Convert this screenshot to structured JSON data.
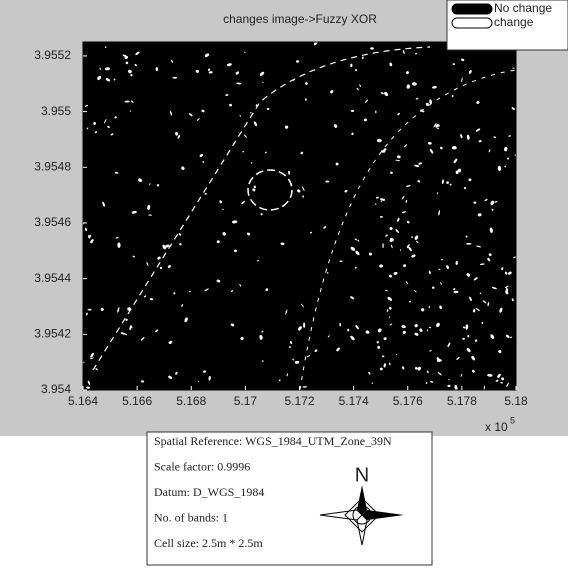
{
  "chart_data": {
    "type": "image",
    "title": "changes image->Fuzzy XOR",
    "xlim": [
      5.164,
      5.18
    ],
    "xticks": [
      5.164,
      5.166,
      5.168,
      5.17,
      5.172,
      5.174,
      5.176,
      5.178,
      5.18
    ],
    "ylim": [
      3.954,
      3.95525
    ],
    "yticks": [
      3.954,
      3.9542,
      3.9544,
      3.9546,
      3.9548,
      3.955,
      3.9552
    ],
    "x_multiplier": {
      "base": "x 10",
      "exponent": "5"
    },
    "legend": [
      {
        "label": "No change",
        "color": "#000000"
      },
      {
        "label": "change",
        "color": "#ffffff"
      }
    ]
  },
  "info": {
    "lines": [
      "Spatial Reference: WGS_1984_UTM_Zone_39N",
      "Scale factor: 0.9996",
      "Datum: D_WGS_1984",
      "No. of bands: 1",
      "Cell size: 2.5m * 2.5m"
    ],
    "north": "N"
  }
}
